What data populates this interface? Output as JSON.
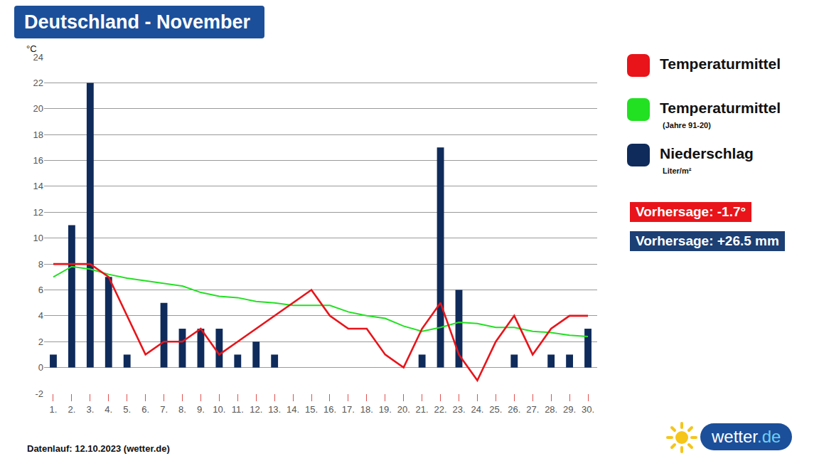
{
  "chart_data": {
    "type": "bar",
    "title": "Deutschland - November",
    "y_label": "°C",
    "categories": [
      "1.",
      "2.",
      "3.",
      "4.",
      "5.",
      "6.",
      "7.",
      "8.",
      "9.",
      "10.",
      "11.",
      "12.",
      "13.",
      "14.",
      "15.",
      "16.",
      "17.",
      "18.",
      "19.",
      "20.",
      "21.",
      "22.",
      "23.",
      "24.",
      "25.",
      "26.",
      "27.",
      "28.",
      "29.",
      "30."
    ],
    "series": [
      {
        "name": "Temperaturmittel",
        "type": "line",
        "color": "#e8141a",
        "values": [
          8,
          8,
          8,
          7,
          4,
          1,
          2,
          2,
          3,
          1,
          2,
          3,
          4,
          5,
          6,
          4,
          3,
          3,
          1,
          0,
          3,
          5,
          1,
          -1,
          2,
          4,
          1,
          3,
          4,
          4
        ]
      },
      {
        "name": "Temperaturmittel",
        "note": "(Jahre 91-20)",
        "type": "line",
        "color": "#22e022",
        "values": [
          7,
          7.8,
          7.6,
          7.2,
          6.9,
          6.7,
          6.5,
          6.3,
          5.8,
          5.5,
          5.4,
          5.1,
          5.0,
          4.8,
          4.8,
          4.8,
          4.3,
          4.0,
          3.8,
          3.2,
          2.8,
          3.1,
          3.5,
          3.4,
          3.1,
          3.1,
          2.8,
          2.7,
          2.5,
          2.4
        ]
      },
      {
        "name": "Niederschlag",
        "note": "Liter/m²",
        "type": "bar",
        "color": "#0f2b5b",
        "values": [
          1,
          11,
          22,
          7,
          1,
          0,
          5,
          3,
          3,
          3,
          1,
          2,
          1,
          0,
          0,
          0,
          0,
          0,
          0,
          0,
          1,
          17,
          6,
          0,
          0,
          1,
          0,
          1,
          1,
          3
        ]
      }
    ],
    "ylim": [
      -2,
      24
    ],
    "yticks": [
      -2,
      0,
      2,
      4,
      6,
      8,
      10,
      12,
      14,
      16,
      18,
      20,
      22,
      24
    ],
    "grid": true,
    "annotations": [
      {
        "text": "Vorhersage: -1.7°",
        "color": "#e8141a"
      },
      {
        "text": "Vorhersage: +26.5 mm",
        "color": "#1c3f74"
      }
    ],
    "source": "Datenlauf: 12.10.2023 (wetter.de)",
    "logo": "wetter.de"
  }
}
